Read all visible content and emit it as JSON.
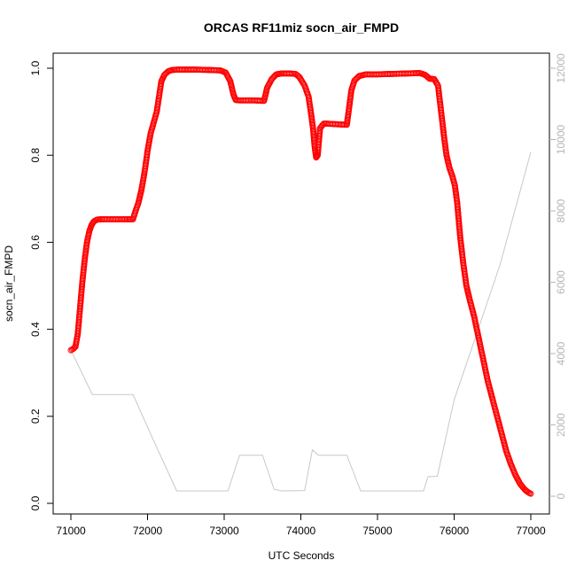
{
  "chart_data": {
    "type": "scatter",
    "title": "ORCAS RF11miz socn_air_FMPD",
    "xlabel": "UTC Seconds",
    "ylabel": "socn_air_FMPD",
    "xlim": [
      71000,
      77000
    ],
    "ylim": [
      0.0,
      1.0
    ],
    "y2lim": [
      0,
      12000
    ],
    "x_ticks": [
      71000,
      72000,
      73000,
      74000,
      75000,
      76000,
      77000
    ],
    "y_ticks": [
      0.0,
      0.2,
      0.4,
      0.6,
      0.8,
      1.0
    ],
    "y_tick_labels": [
      "0.0",
      "0.2",
      "0.4",
      "0.6",
      "0.8",
      "1.0"
    ],
    "y2_ticks": [
      0,
      2000,
      4000,
      6000,
      8000,
      10000,
      12000
    ],
    "grid": false,
    "colors": {
      "points": "#ff0000",
      "altitude_line": "#c8c8c8",
      "right_axis": "#b5b5b5"
    },
    "series": [
      {
        "marker": "open-circle",
        "color": "#ff0000",
        "axis": "left",
        "points": [
          [
            71000,
            0.352
          ],
          [
            71030,
            0.355
          ],
          [
            71060,
            0.36
          ],
          [
            71090,
            0.39
          ],
          [
            71120,
            0.45
          ],
          [
            71150,
            0.51
          ],
          [
            71180,
            0.56
          ],
          [
            71210,
            0.6
          ],
          [
            71240,
            0.625
          ],
          [
            71270,
            0.64
          ],
          [
            71300,
            0.648
          ],
          [
            71340,
            0.652
          ],
          [
            71400,
            0.653
          ],
          [
            71500,
            0.653
          ],
          [
            71600,
            0.653
          ],
          [
            71700,
            0.653
          ],
          [
            71810,
            0.653
          ],
          [
            71840,
            0.67
          ],
          [
            71880,
            0.69
          ],
          [
            71920,
            0.72
          ],
          [
            71960,
            0.76
          ],
          [
            72000,
            0.81
          ],
          [
            72040,
            0.85
          ],
          [
            72080,
            0.875
          ],
          [
            72120,
            0.9
          ],
          [
            72150,
            0.935
          ],
          [
            72180,
            0.97
          ],
          [
            72220,
            0.985
          ],
          [
            72270,
            0.993
          ],
          [
            72320,
            0.996
          ],
          [
            72400,
            0.997
          ],
          [
            72600,
            0.997
          ],
          [
            72800,
            0.996
          ],
          [
            72950,
            0.995
          ],
          [
            73020,
            0.99
          ],
          [
            73080,
            0.97
          ],
          [
            73120,
            0.94
          ],
          [
            73150,
            0.927
          ],
          [
            73200,
            0.926
          ],
          [
            73300,
            0.926
          ],
          [
            73400,
            0.926
          ],
          [
            73520,
            0.925
          ],
          [
            73560,
            0.955
          ],
          [
            73620,
            0.975
          ],
          [
            73680,
            0.986
          ],
          [
            73750,
            0.988
          ],
          [
            73850,
            0.988
          ],
          [
            73930,
            0.987
          ],
          [
            73980,
            0.98
          ],
          [
            74050,
            0.96
          ],
          [
            74100,
            0.935
          ],
          [
            74130,
            0.9
          ],
          [
            74160,
            0.86
          ],
          [
            74180,
            0.82
          ],
          [
            74200,
            0.795
          ],
          [
            74220,
            0.8
          ],
          [
            74250,
            0.862
          ],
          [
            74300,
            0.873
          ],
          [
            74400,
            0.872
          ],
          [
            74500,
            0.871
          ],
          [
            74600,
            0.87
          ],
          [
            74630,
            0.91
          ],
          [
            74660,
            0.95
          ],
          [
            74700,
            0.972
          ],
          [
            74760,
            0.982
          ],
          [
            74850,
            0.986
          ],
          [
            75000,
            0.986
          ],
          [
            75200,
            0.987
          ],
          [
            75400,
            0.988
          ],
          [
            75550,
            0.989
          ],
          [
            75620,
            0.985
          ],
          [
            75680,
            0.976
          ],
          [
            75740,
            0.975
          ],
          [
            75790,
            0.96
          ],
          [
            75830,
            0.9
          ],
          [
            75870,
            0.84
          ],
          [
            75900,
            0.8
          ],
          [
            75940,
            0.77
          ],
          [
            75980,
            0.75
          ],
          [
            76010,
            0.73
          ],
          [
            76040,
            0.69
          ],
          [
            76080,
            0.61
          ],
          [
            76120,
            0.55
          ],
          [
            76160,
            0.5
          ],
          [
            76200,
            0.47
          ],
          [
            76260,
            0.43
          ],
          [
            76320,
            0.38
          ],
          [
            76380,
            0.33
          ],
          [
            76440,
            0.28
          ],
          [
            76500,
            0.24
          ],
          [
            76560,
            0.2
          ],
          [
            76620,
            0.16
          ],
          [
            76680,
            0.12
          ],
          [
            76740,
            0.09
          ],
          [
            76800,
            0.065
          ],
          [
            76860,
            0.045
          ],
          [
            76920,
            0.032
          ],
          [
            76960,
            0.026
          ],
          [
            77000,
            0.022
          ]
        ]
      },
      {
        "type": "line",
        "color": "#c8c8c8",
        "axis": "right",
        "points": [
          [
            71000,
            4100
          ],
          [
            71280,
            2850
          ],
          [
            71810,
            2850
          ],
          [
            72050,
            1700
          ],
          [
            72380,
            150
          ],
          [
            73050,
            150
          ],
          [
            73200,
            1150
          ],
          [
            73500,
            1150
          ],
          [
            73650,
            200
          ],
          [
            73750,
            150
          ],
          [
            74050,
            160
          ],
          [
            74150,
            1300
          ],
          [
            74230,
            1150
          ],
          [
            74600,
            1150
          ],
          [
            74780,
            150
          ],
          [
            75600,
            150
          ],
          [
            75660,
            550
          ],
          [
            75780,
            560
          ],
          [
            76000,
            2700
          ],
          [
            76300,
            4600
          ],
          [
            76600,
            6500
          ],
          [
            77000,
            9650
          ]
        ]
      }
    ]
  }
}
